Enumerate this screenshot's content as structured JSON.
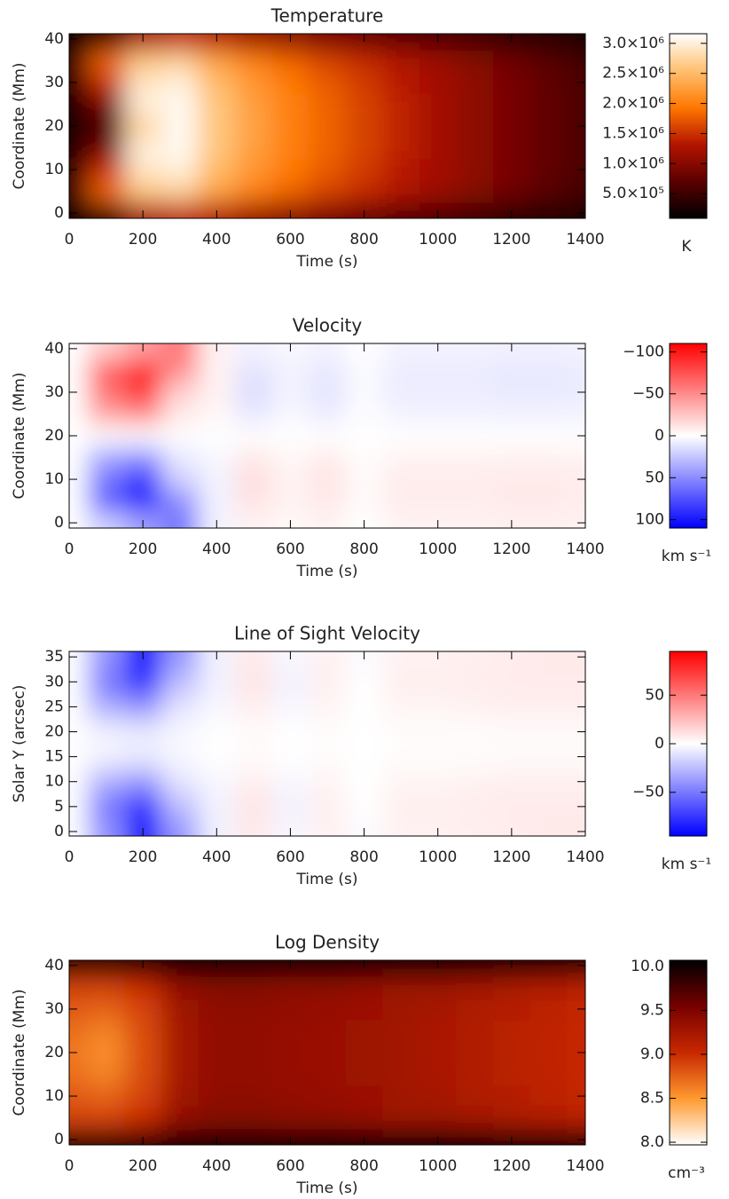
{
  "chart_data": [
    {
      "type": "heatmap",
      "title": "Temperature",
      "xlabel": "Time (s)",
      "ylabel": "Coordinate (Mm)",
      "xlim": [
        0,
        1400
      ],
      "xticks": [
        0,
        200,
        400,
        600,
        800,
        1000,
        1200,
        1400
      ],
      "ylim": [
        -1.2,
        41.2
      ],
      "yticks": [
        0,
        10,
        20,
        30,
        40
      ],
      "x": [
        0,
        100,
        200,
        300,
        400,
        500,
        600,
        700,
        800,
        900,
        1000,
        1100,
        1200,
        1300,
        1400
      ],
      "y": [
        0,
        5,
        10,
        15,
        20,
        25,
        30,
        35,
        40
      ],
      "z": [
        [
          150000,
          400000,
          1200000,
          1400000,
          1300000,
          1100000,
          1000000,
          900000,
          800000,
          700000,
          600000,
          500000,
          400000,
          350000,
          300000
        ],
        [
          400000,
          1800000,
          2600000,
          2700000,
          2300000,
          2000000,
          1800000,
          1600000,
          1450000,
          1300000,
          1150000,
          1000000,
          850000,
          700000,
          550000
        ],
        [
          350000,
          1500000,
          2900000,
          3000000,
          2500000,
          2200000,
          1950000,
          1750000,
          1550000,
          1350000,
          1200000,
          1050000,
          900000,
          750000,
          600000
        ],
        [
          300000,
          900000,
          3000000,
          3100000,
          2600000,
          2250000,
          2000000,
          1800000,
          1600000,
          1400000,
          1200000,
          1050000,
          900000,
          750000,
          600000
        ],
        [
          250000,
          600000,
          2700000,
          3100000,
          2600000,
          2300000,
          2000000,
          1800000,
          1600000,
          1400000,
          1200000,
          1050000,
          900000,
          750000,
          600000
        ],
        [
          300000,
          900000,
          3000000,
          3100000,
          2600000,
          2250000,
          2000000,
          1800000,
          1600000,
          1400000,
          1200000,
          1050000,
          900000,
          750000,
          600000
        ],
        [
          350000,
          1500000,
          2900000,
          3000000,
          2500000,
          2200000,
          1950000,
          1750000,
          1550000,
          1350000,
          1200000,
          1050000,
          900000,
          750000,
          600000
        ],
        [
          400000,
          1800000,
          2600000,
          2700000,
          2300000,
          2000000,
          1800000,
          1600000,
          1450000,
          1300000,
          1150000,
          1000000,
          850000,
          700000,
          550000
        ],
        [
          150000,
          400000,
          1200000,
          1400000,
          1300000,
          1100000,
          1000000,
          900000,
          800000,
          700000,
          600000,
          500000,
          400000,
          350000,
          300000
        ]
      ],
      "colorbar": {
        "label": "K",
        "lim": [
          90000,
          3160000
        ],
        "colors": [
          "#000000",
          "#5a0000",
          "#b41400",
          "#ff7800",
          "#ffc070",
          "#ffffff"
        ],
        "ticks": [
          {
            "value": 500000,
            "label": "5.0×10⁵"
          },
          {
            "value": 1000000,
            "label": "1.0×10⁶"
          },
          {
            "value": 1500000,
            "label": "1.5×10⁶"
          },
          {
            "value": 2000000,
            "label": "2.0×10⁶"
          },
          {
            "value": 2500000,
            "label": "2.5×10⁶"
          },
          {
            "value": 3000000,
            "label": "3.0×10⁶"
          }
        ]
      }
    },
    {
      "type": "heatmap",
      "title": "Velocity",
      "xlabel": "Time (s)",
      "ylabel": "Coordinate (Mm)",
      "xlim": [
        0,
        1400
      ],
      "xticks": [
        0,
        200,
        400,
        600,
        800,
        1000,
        1200,
        1400
      ],
      "ylim": [
        -1.2,
        41.2
      ],
      "yticks": [
        0,
        10,
        20,
        30,
        40
      ],
      "x": [
        0,
        100,
        200,
        300,
        400,
        500,
        600,
        700,
        800,
        900,
        1000,
        1100,
        1200,
        1300,
        1400
      ],
      "y": [
        0,
        5,
        10,
        15,
        20,
        25,
        30,
        35,
        40
      ],
      "z": [
        [
          0,
          20,
          40,
          60,
          5,
          -5,
          -3,
          -5,
          0,
          -5,
          -5,
          -5,
          -6,
          -6,
          -5
        ],
        [
          0,
          70,
          100,
          50,
          5,
          -12,
          -5,
          -10,
          -2,
          -8,
          -8,
          -8,
          -10,
          -10,
          -8
        ],
        [
          0,
          60,
          90,
          20,
          5,
          -15,
          -5,
          -12,
          -2,
          -8,
          -8,
          -8,
          -9,
          -9,
          -8
        ],
        [
          0,
          40,
          50,
          10,
          3,
          -10,
          -3,
          -8,
          -1,
          -5,
          -5,
          -5,
          -6,
          -6,
          -5
        ],
        [
          0,
          0,
          0,
          0,
          0,
          0,
          0,
          0,
          0,
          0,
          0,
          0,
          0,
          0,
          0
        ],
        [
          0,
          -40,
          -50,
          -10,
          -3,
          10,
          3,
          8,
          1,
          5,
          5,
          5,
          6,
          6,
          5
        ],
        [
          0,
          -60,
          -90,
          -20,
          -5,
          15,
          5,
          12,
          2,
          8,
          8,
          8,
          9,
          9,
          8
        ],
        [
          0,
          -70,
          -100,
          -50,
          -5,
          12,
          5,
          10,
          2,
          8,
          8,
          8,
          10,
          10,
          8
        ],
        [
          0,
          -20,
          -40,
          -60,
          -5,
          5,
          3,
          5,
          0,
          5,
          5,
          5,
          6,
          6,
          5
        ]
      ],
      "colorbar": {
        "label": "km s⁻¹",
        "lim": [
          110,
          -110
        ],
        "colors": [
          "#0000ff",
          "#ffffff",
          "#ff0000"
        ],
        "ticks": [
          {
            "value": -100,
            "label": "−100"
          },
          {
            "value": -50,
            "label": "−50"
          },
          0,
          50,
          100
        ]
      }
    },
    {
      "type": "heatmap",
      "title": "Line of Sight Velocity",
      "xlabel": "Time (s)",
      "ylabel": "Solar Y (arcsec)",
      "xlim": [
        0,
        1400
      ],
      "xticks": [
        0,
        200,
        400,
        600,
        800,
        1000,
        1200,
        1400
      ],
      "ylim": [
        -0.9,
        36.1
      ],
      "yticks": [
        0,
        5,
        10,
        15,
        20,
        25,
        30,
        35
      ],
      "x": [
        0,
        100,
        200,
        300,
        400,
        500,
        600,
        700,
        800,
        900,
        1000,
        1100,
        1200,
        1300,
        1400
      ],
      "y": [
        0,
        5,
        10,
        15,
        20,
        25,
        30,
        35
      ],
      "z": [
        [
          0,
          -40,
          -90,
          -40,
          -5,
          8,
          -3,
          5,
          -2,
          5,
          5,
          6,
          7,
          8,
          8
        ],
        [
          0,
          -50,
          -80,
          -25,
          -5,
          10,
          -5,
          6,
          0,
          6,
          6,
          7,
          8,
          8,
          8
        ],
        [
          0,
          -30,
          -40,
          -10,
          -3,
          6,
          -3,
          4,
          0,
          4,
          4,
          5,
          6,
          6,
          6
        ],
        [
          0,
          -5,
          -8,
          -3,
          0,
          2,
          0,
          1,
          0,
          1,
          1,
          1,
          2,
          2,
          2
        ],
        [
          0,
          -5,
          -8,
          -3,
          0,
          2,
          0,
          1,
          0,
          1,
          1,
          1,
          2,
          2,
          2
        ],
        [
          0,
          -30,
          -40,
          -10,
          -3,
          6,
          -3,
          4,
          0,
          4,
          4,
          5,
          6,
          6,
          6
        ],
        [
          0,
          -50,
          -80,
          -25,
          -5,
          10,
          -5,
          6,
          0,
          6,
          6,
          7,
          8,
          8,
          8
        ],
        [
          0,
          -40,
          -90,
          -40,
          -5,
          8,
          -3,
          5,
          -2,
          5,
          5,
          6,
          7,
          8,
          8
        ]
      ],
      "colorbar": {
        "label": "km s⁻¹",
        "lim": [
          -95,
          95
        ],
        "colors": [
          "#0000ff",
          "#ffffff",
          "#ff0000"
        ],
        "ticks": [
          {
            "value": -50,
            "label": "−50"
          },
          0,
          50
        ]
      }
    },
    {
      "type": "heatmap",
      "title": "Log Density",
      "xlabel": "Time (s)",
      "ylabel": "Coordinate (Mm)",
      "xlim": [
        0,
        1400
      ],
      "xticks": [
        0,
        200,
        400,
        600,
        800,
        1000,
        1200,
        1400
      ],
      "ylim": [
        -1.2,
        41.2
      ],
      "yticks": [
        0,
        10,
        20,
        30,
        40
      ],
      "x": [
        0,
        100,
        200,
        300,
        400,
        500,
        600,
        700,
        800,
        900,
        1000,
        1100,
        1200,
        1300,
        1400
      ],
      "y": [
        0,
        5,
        10,
        15,
        20,
        25,
        30,
        35,
        40
      ],
      "z": [
        [
          9.9,
          9.9,
          9.9,
          10.0,
          10.0,
          10.0,
          10.0,
          10.0,
          10.0,
          10.0,
          10.0,
          10.0,
          9.95,
          9.95,
          9.9
        ],
        [
          8.9,
          8.9,
          9.0,
          9.35,
          9.45,
          9.45,
          9.4,
          9.4,
          9.35,
          9.3,
          9.3,
          9.25,
          9.2,
          9.15,
          9.1
        ],
        [
          8.8,
          8.75,
          8.9,
          9.3,
          9.4,
          9.4,
          9.38,
          9.35,
          9.32,
          9.28,
          9.25,
          9.2,
          9.15,
          9.1,
          9.05
        ],
        [
          8.7,
          8.6,
          8.85,
          9.25,
          9.38,
          9.38,
          9.35,
          9.33,
          9.3,
          9.27,
          9.22,
          9.18,
          9.12,
          9.08,
          9.03
        ],
        [
          8.65,
          8.55,
          8.85,
          9.25,
          9.38,
          9.38,
          9.35,
          9.33,
          9.3,
          9.27,
          9.22,
          9.18,
          9.12,
          9.08,
          9.03
        ],
        [
          8.7,
          8.6,
          8.85,
          9.25,
          9.38,
          9.38,
          9.35,
          9.33,
          9.3,
          9.27,
          9.22,
          9.18,
          9.12,
          9.08,
          9.03
        ],
        [
          8.8,
          8.75,
          8.9,
          9.3,
          9.4,
          9.4,
          9.38,
          9.35,
          9.32,
          9.28,
          9.25,
          9.2,
          9.15,
          9.1,
          9.05
        ],
        [
          8.9,
          8.9,
          9.0,
          9.35,
          9.45,
          9.45,
          9.4,
          9.4,
          9.35,
          9.3,
          9.3,
          9.25,
          9.2,
          9.15,
          9.1
        ],
        [
          9.9,
          9.9,
          9.9,
          10.0,
          10.0,
          10.0,
          10.0,
          10.0,
          10.0,
          10.0,
          10.0,
          10.0,
          9.95,
          9.95,
          9.9
        ]
      ],
      "colorbar": {
        "label": "cm⁻³",
        "lim": [
          7.97,
          10.07
        ],
        "colors": [
          "#ffffff",
          "#ff9a30",
          "#c82800",
          "#780000",
          "#000000"
        ],
        "ticks": [
          {
            "value": 8,
            "label": "8.0"
          },
          8.5,
          {
            "value": 9,
            "label": "9.0"
          },
          9.5,
          {
            "value": 10,
            "label": "10.0"
          }
        ]
      }
    }
  ]
}
